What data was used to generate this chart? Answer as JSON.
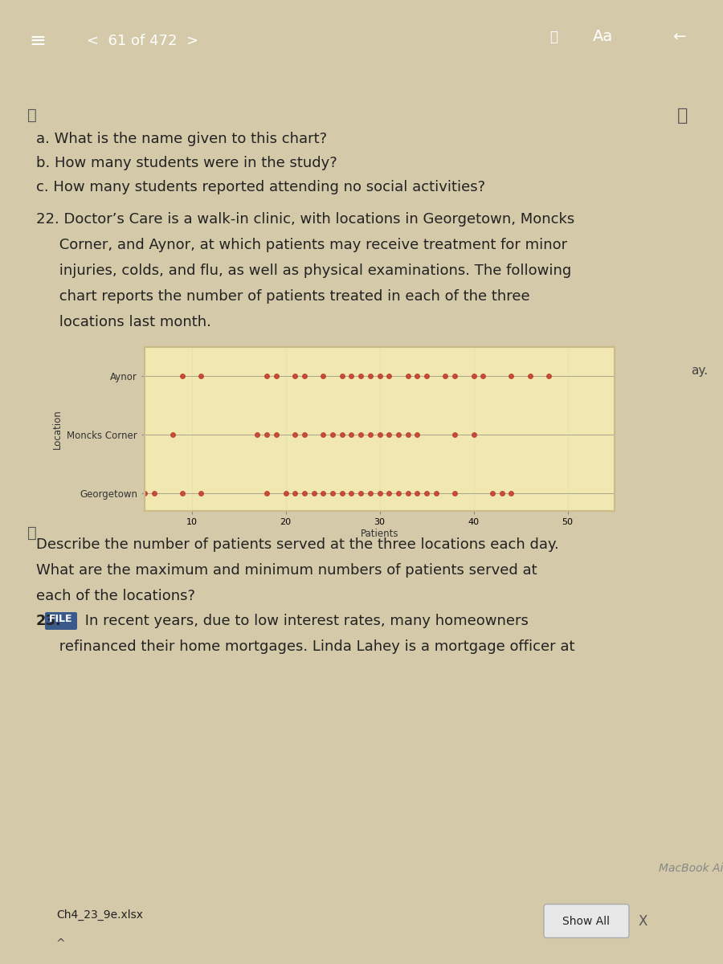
{
  "title": "",
  "ylabel": "Location",
  "xlabel": "Patients",
  "locations": [
    "Georgetown",
    "Moncks Corner",
    "Aynor"
  ],
  "georgetown_data": [
    5,
    6,
    9,
    11,
    18,
    20,
    21,
    22,
    23,
    24,
    25,
    26,
    27,
    28,
    29,
    30,
    31,
    32,
    33,
    34,
    35,
    36,
    38,
    42,
    43,
    44
  ],
  "moncks_corner_data": [
    8,
    17,
    18,
    19,
    21,
    22,
    24,
    25,
    26,
    27,
    28,
    29,
    30,
    31,
    32,
    33,
    34,
    38,
    40
  ],
  "aynor_data": [
    9,
    11,
    18,
    19,
    21,
    22,
    24,
    26,
    27,
    28,
    29,
    30,
    31,
    33,
    34,
    35,
    37,
    38,
    40,
    41,
    44,
    46,
    48
  ],
  "dot_color": "#c0392b",
  "bg_color": "#f5f0d0",
  "box_bg": "#f0e8b0",
  "xlim": [
    5,
    55
  ],
  "xticks": [
    10,
    20,
    30,
    40,
    50
  ],
  "figsize": [
    5.5,
    2.0
  ]
}
